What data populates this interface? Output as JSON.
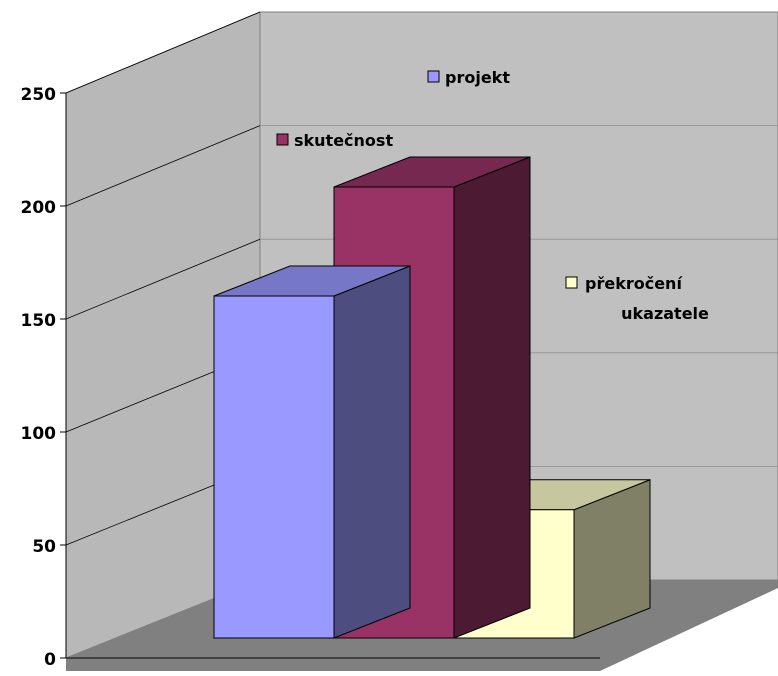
{
  "chart_data": {
    "type": "bar",
    "style": "3d-clustered-columns",
    "title": "",
    "xlabel": "",
    "ylabel": "",
    "ylim": [
      0,
      250
    ],
    "y_ticks": [
      "0",
      "50",
      "100",
      "150",
      "200",
      "250"
    ],
    "grid": true,
    "legend": "inline",
    "series": [
      {
        "name": "projekt",
        "value": 160,
        "color": "#9999ff"
      },
      {
        "name": "skutečnost",
        "value": 211,
        "color": "#993366"
      },
      {
        "name": "překročení ukazatele",
        "value": 60,
        "color": "#ffffcc"
      }
    ],
    "colors": {
      "back_wall": "#c0c0c0",
      "side_wall": "#b8b8b8",
      "floor": "#808080",
      "gridline": "#000000"
    }
  }
}
